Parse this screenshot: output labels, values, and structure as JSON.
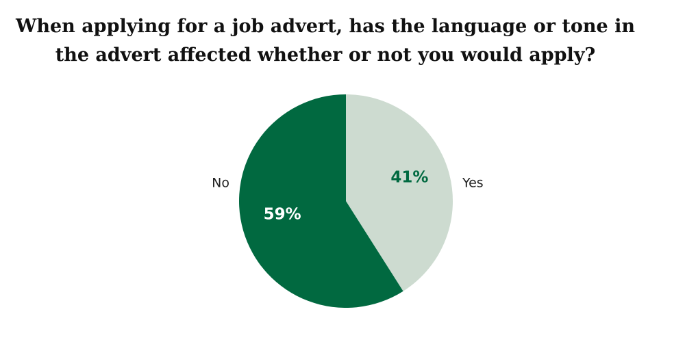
{
  "chart_data": {
    "type": "pie",
    "title": "When applying for a job advert, has the language or tone in\nthe advert affected whether or not you would apply?",
    "slices": [
      {
        "label": "Yes",
        "value": 41,
        "value_label": "41%",
        "color": "#cddbd0",
        "text_color": "#006940"
      },
      {
        "label": "No",
        "value": 59,
        "value_label": "59%",
        "color": "#016940",
        "text_color": "#ffffff"
      }
    ],
    "start_angle_deg": 0,
    "direction": "clockwise",
    "legend": "none"
  }
}
